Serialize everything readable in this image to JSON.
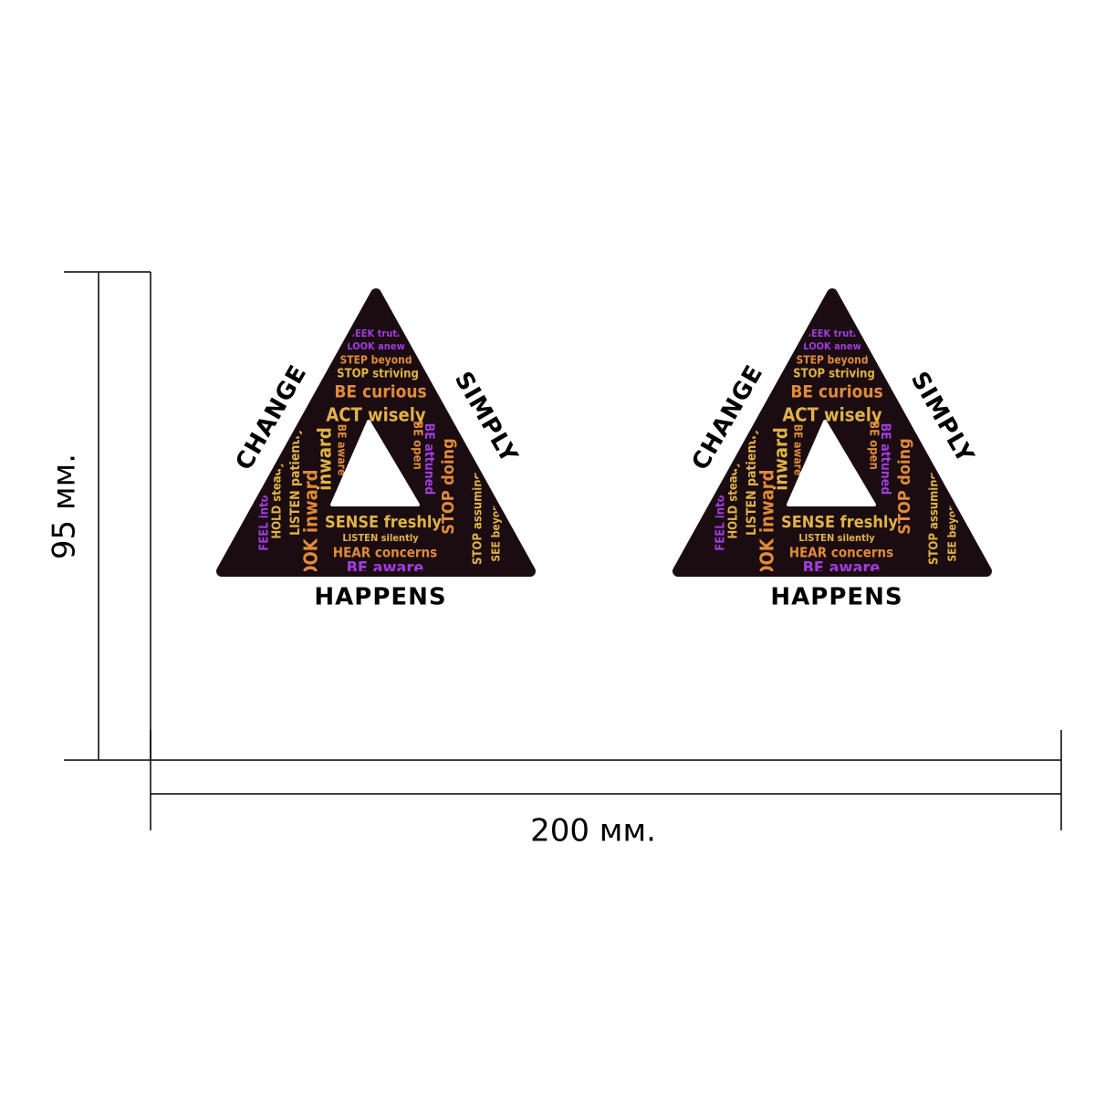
{
  "dimensions": {
    "height": "95 мм.",
    "width": "200 мм."
  },
  "sticker": {
    "labels": {
      "left": "CHANGE",
      "right": "SIMPLY",
      "bottom": "HAPPENS"
    },
    "words": [
      "SEEK truth",
      "LOOK anew",
      "STEP beyond",
      "STOP striving",
      "BE curious",
      "ACT wisely",
      "BE open",
      "BE attuned",
      "STOP doing",
      "BE aware",
      "inward",
      "LISTEN patiently",
      "HOLD steady",
      "FEEL into",
      "SENSE freshly",
      "LISTEN silently",
      "HEAR concerns",
      "BE aware",
      "LOOK inward",
      "STOP assuming",
      "SEE beyond"
    ]
  }
}
